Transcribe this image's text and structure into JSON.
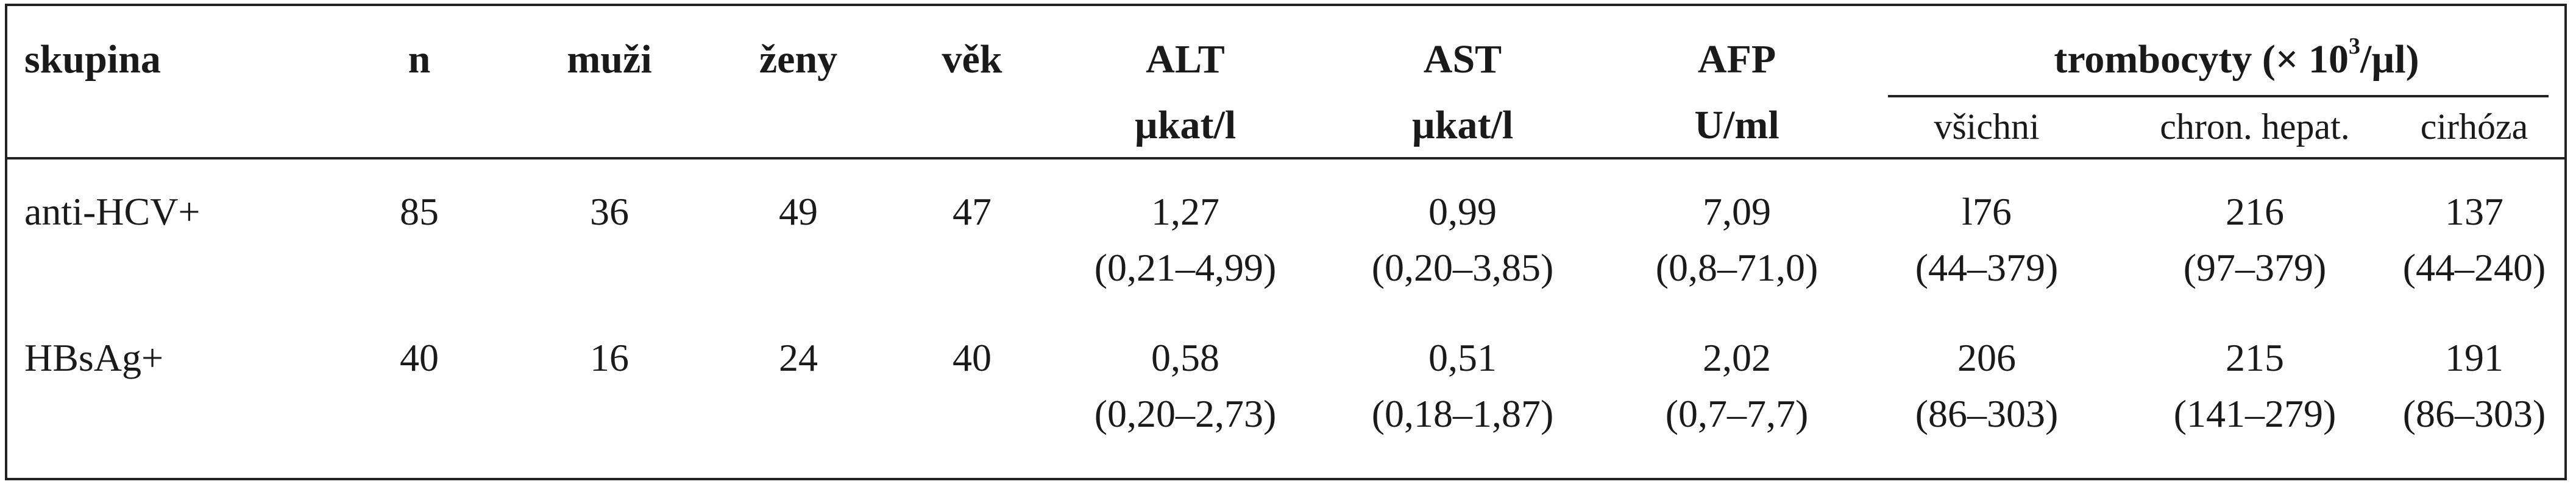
{
  "table": {
    "headers": {
      "group": "skupina",
      "n": "n",
      "men": "muži",
      "women": "ženy",
      "age": "věk",
      "alt": "ALT",
      "alt_unit": "µkat/l",
      "ast": "AST",
      "ast_unit": "µkat/l",
      "afp": "AFP",
      "afp_unit": "U/ml",
      "platelets_prefix": "trombocyty (× 10",
      "platelets_sup": "3",
      "platelets_suffix": "/µl)",
      "all": "všichni",
      "chronic": "chron. hepat.",
      "cirrhosis": "cirhóza"
    },
    "rows": [
      {
        "group": "anti-HCV+",
        "n": "85",
        "men": "36",
        "women": "49",
        "age": "47",
        "alt": "1,27",
        "alt_range": "(0,21–4,99)",
        "ast": "0,99",
        "ast_range": "(0,20–3,85)",
        "afp": "7,09",
        "afp_range": "(0,8–71,0)",
        "all": "l76",
        "all_range": "(44–379)",
        "chronic": "216",
        "chronic_range": "(97–379)",
        "cirrhosis": "137",
        "cirrhosis_range": "(44–240)"
      },
      {
        "group": "HBsAg+",
        "n": "40",
        "men": "16",
        "women": "24",
        "age": "40",
        "alt": "0,58",
        "alt_range": "(0,20–2,73)",
        "ast": "0,51",
        "ast_range": "(0,18–1,87)",
        "afp": "2,02",
        "afp_range": "(0,7–7,7)",
        "all": "206",
        "all_range": "(86–303)",
        "chronic": "215",
        "chronic_range": "(141–279)",
        "cirrhosis": "191",
        "cirrhosis_range": "(86–303)"
      }
    ]
  }
}
